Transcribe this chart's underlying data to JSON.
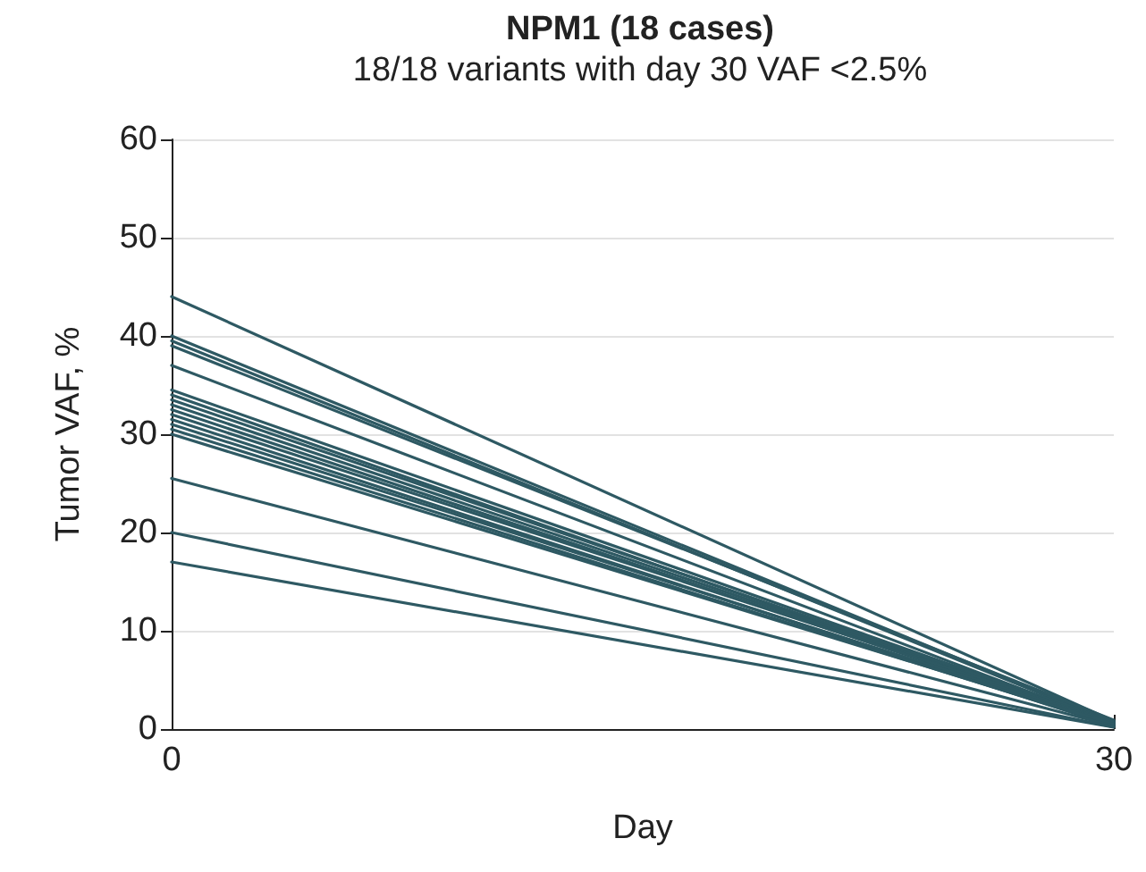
{
  "chart_data": {
    "type": "line",
    "title": "NPM1 (18 cases)",
    "subtitle": "18/18 variants with day 30 VAF <2.5%",
    "xlabel": "Day",
    "ylabel": "Tumor VAF, %",
    "x": [
      0,
      30
    ],
    "xlim": [
      0,
      30
    ],
    "xticks": [
      0,
      30
    ],
    "ylim": [
      0,
      60
    ],
    "yticks": [
      0,
      10,
      20,
      30,
      40,
      50,
      60
    ],
    "grid": "y",
    "marker": "none",
    "line_style": "solid",
    "series": [
      {
        "color": "#2e5963",
        "values": [
          44,
          0.8
        ]
      },
      {
        "color": "#2e5963",
        "values": [
          40,
          0.7
        ]
      },
      {
        "color": "#2e5963",
        "values": [
          39.5,
          0.6
        ]
      },
      {
        "color": "#2e5963",
        "values": [
          39,
          0.9
        ]
      },
      {
        "color": "#2e5963",
        "values": [
          37,
          0.5
        ]
      },
      {
        "color": "#2e5963",
        "values": [
          34.5,
          0.7
        ]
      },
      {
        "color": "#2e5963",
        "values": [
          34,
          0.4
        ]
      },
      {
        "color": "#2e5963",
        "values": [
          33.5,
          0.8
        ]
      },
      {
        "color": "#2e5963",
        "values": [
          33,
          0.6
        ]
      },
      {
        "color": "#2e5963",
        "values": [
          32.5,
          0.5
        ]
      },
      {
        "color": "#2e5963",
        "values": [
          32,
          0.7
        ]
      },
      {
        "color": "#2e5963",
        "values": [
          31.5,
          0.3
        ]
      },
      {
        "color": "#2e5963",
        "values": [
          31,
          0.6
        ]
      },
      {
        "color": "#2e5963",
        "values": [
          30.5,
          0.4
        ]
      },
      {
        "color": "#2e5963",
        "values": [
          30,
          0.5
        ]
      },
      {
        "color": "#2e5963",
        "values": [
          25.5,
          0.3
        ]
      },
      {
        "color": "#2e5963",
        "values": [
          20,
          0.2
        ]
      },
      {
        "color": "#2e5963",
        "values": [
          17,
          0.2
        ]
      }
    ]
  }
}
